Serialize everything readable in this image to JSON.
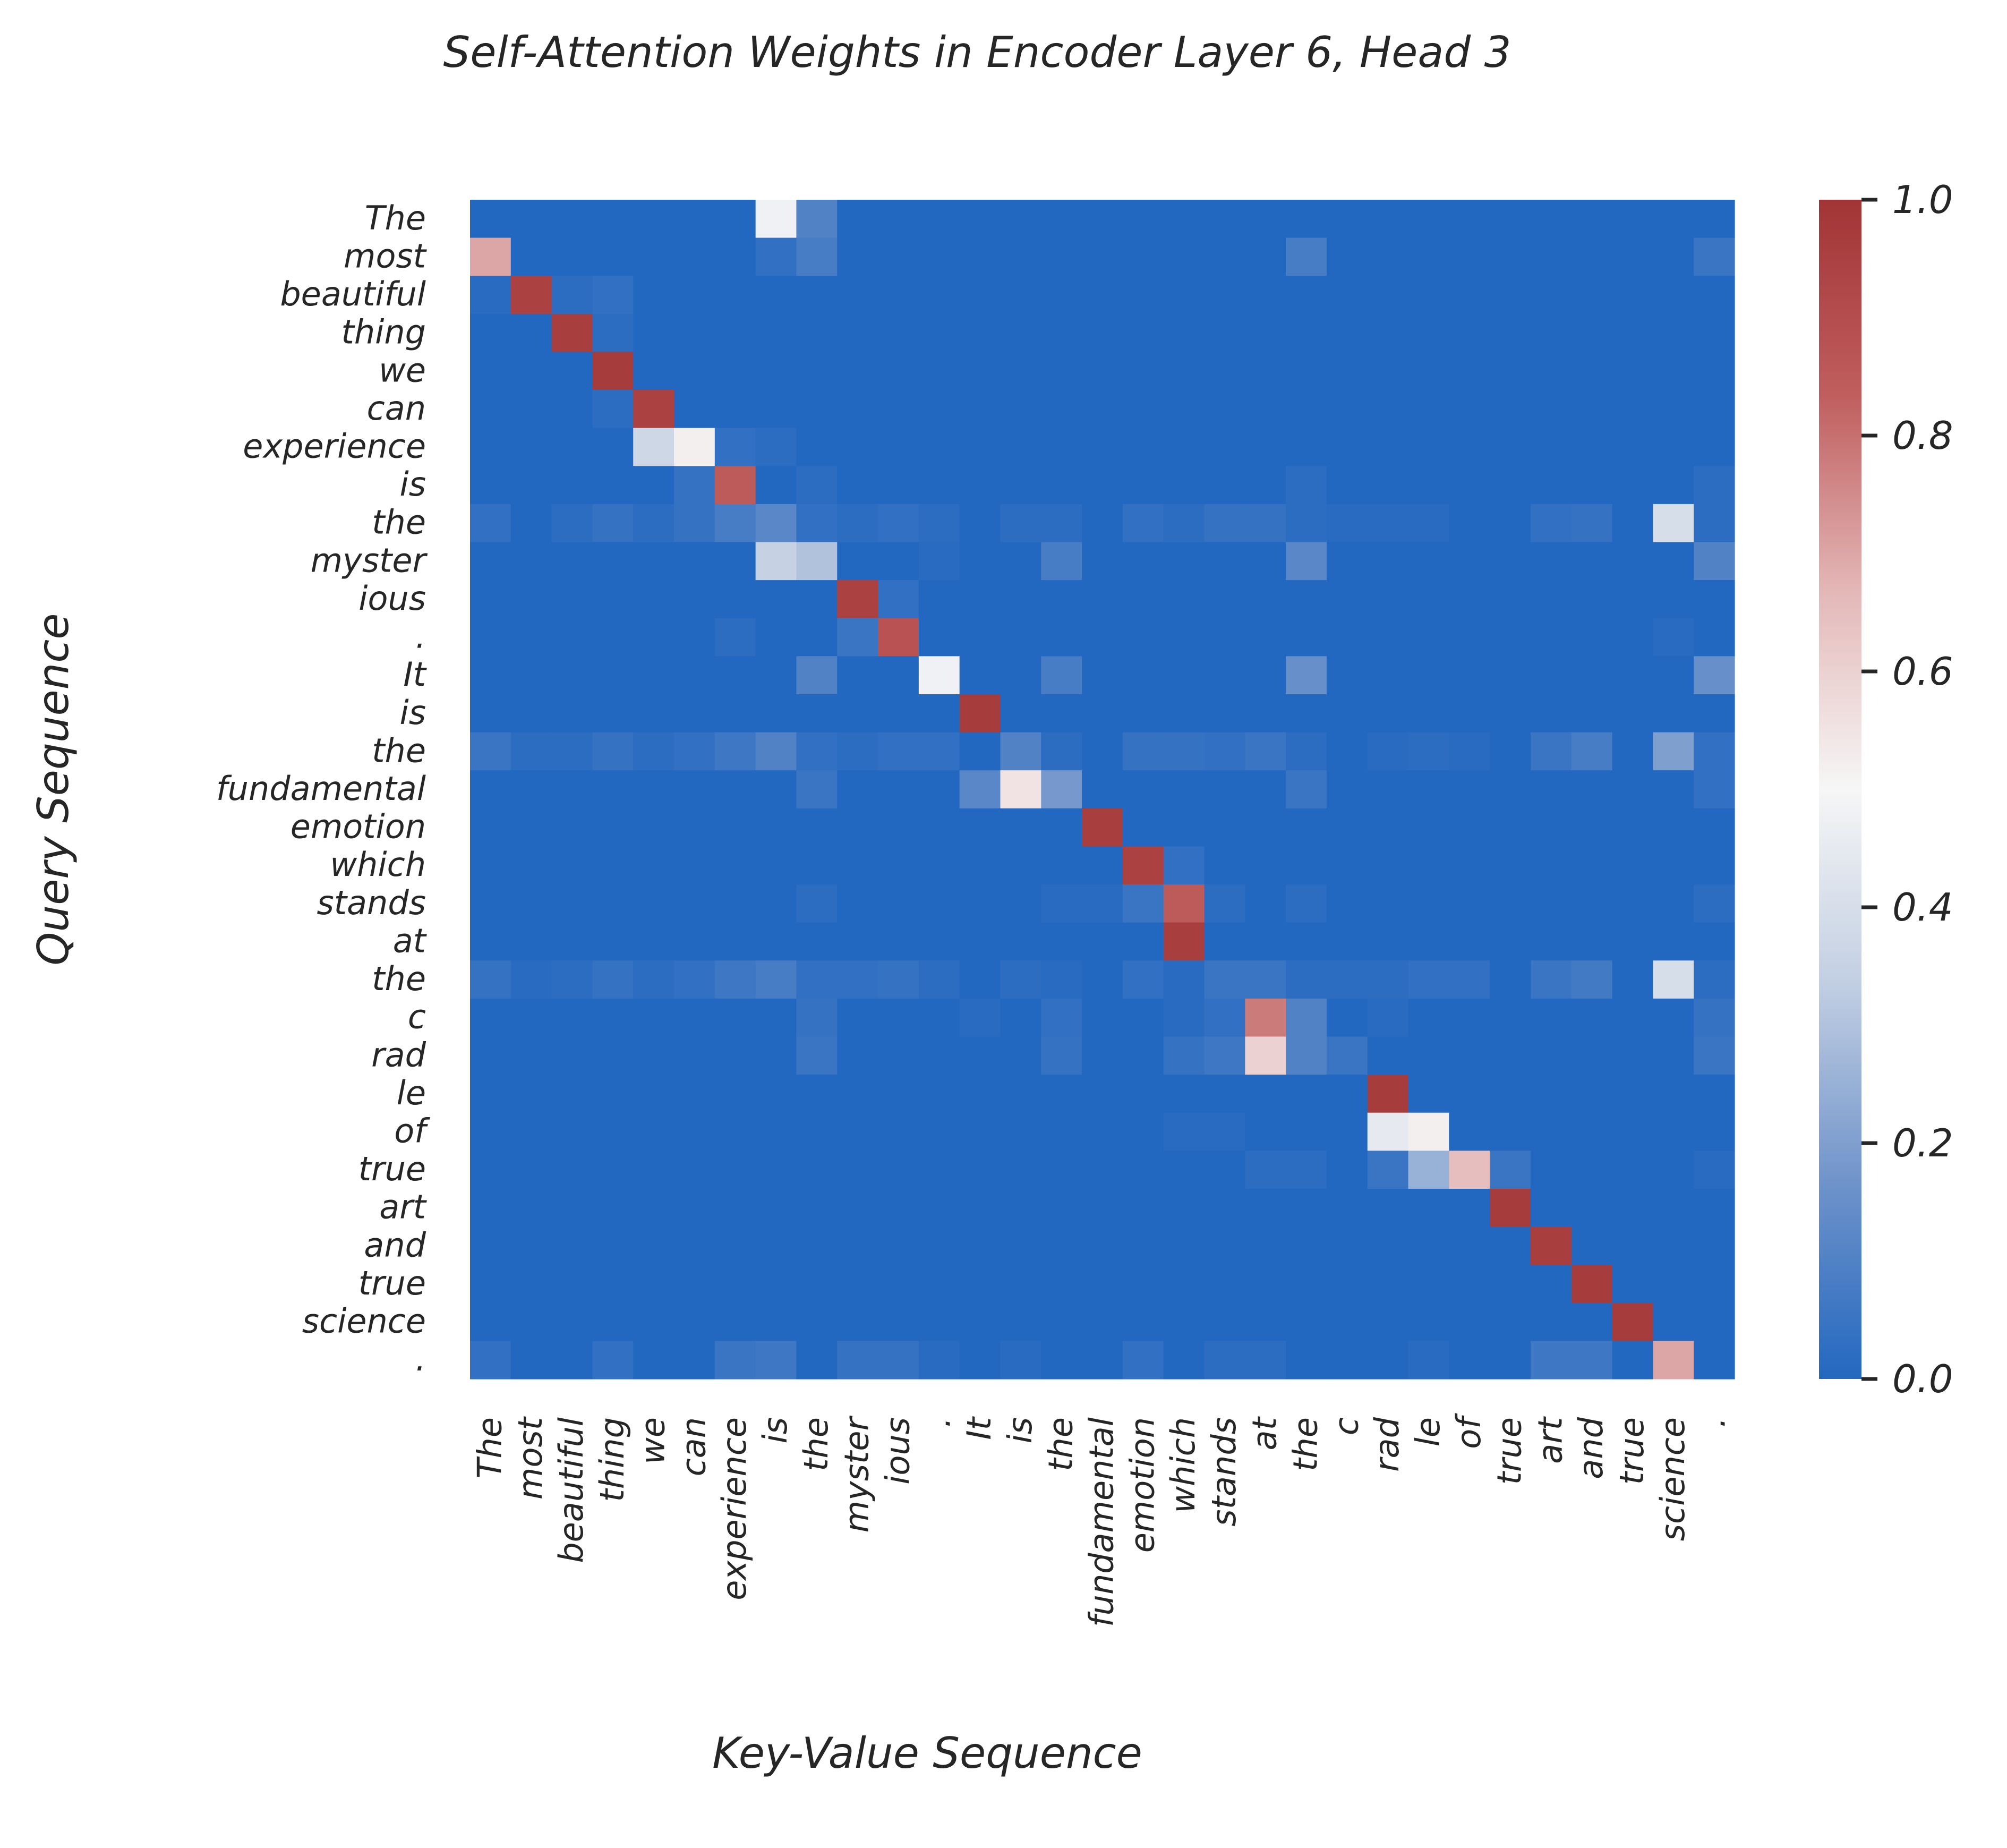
{
  "chart_data": {
    "type": "heatmap",
    "title": "Self-Attention Weights in Encoder Layer 6, Head 3",
    "xlabel": "Key-Value Sequence",
    "ylabel": "Query Sequence",
    "row_labels": [
      "The",
      "most",
      "beautiful",
      "thing",
      "we",
      "can",
      "experience",
      "is",
      "the",
      "myster",
      "ious",
      ".",
      "It",
      "is",
      "the",
      "fundamental",
      "emotion",
      "which",
      "stands",
      "at",
      "the",
      "c",
      "rad",
      "le",
      "of",
      "true",
      "art",
      "and",
      "true",
      "science",
      "."
    ],
    "col_labels": [
      "The",
      "most",
      "beautiful",
      "thing",
      "we",
      "can",
      "experience",
      "is",
      "the",
      "myster",
      "ious",
      ".",
      "It",
      "is",
      "the",
      "fundamental",
      "emotion",
      "which",
      "stands",
      "at",
      "the",
      "c",
      "rad",
      "le",
      "of",
      "true",
      "art",
      "and",
      "true",
      "science",
      "."
    ],
    "colorbar": {
      "min": 0.0,
      "max": 1.0,
      "ticks": [
        "0.0",
        "0.2",
        "0.4",
        "0.6",
        "0.8",
        "1.0"
      ],
      "colors": [
        "#2368c0",
        "#6f93ca",
        "#c1cee2",
        "#f6f6f6",
        "#e4b8b8",
        "#c05e5e",
        "#a23435"
      ]
    },
    "values": [
      [
        0.0,
        0.0,
        0.0,
        0.0,
        0.0,
        0.0,
        0.0,
        0.48,
        0.1,
        0.0,
        0.0,
        0.0,
        0.0,
        0.0,
        0.0,
        0.0,
        0.0,
        0.0,
        0.0,
        0.0,
        0.0,
        0.0,
        0.0,
        0.0,
        0.0,
        0.0,
        0.0,
        0.0,
        0.0,
        0.0,
        0.0
      ],
      [
        0.7,
        0.0,
        0.0,
        0.0,
        0.0,
        0.0,
        0.0,
        0.03,
        0.08,
        0.0,
        0.0,
        0.0,
        0.0,
        0.0,
        0.0,
        0.0,
        0.0,
        0.0,
        0.0,
        0.0,
        0.08,
        0.0,
        0.0,
        0.0,
        0.0,
        0.0,
        0.0,
        0.0,
        0.0,
        0.0,
        0.05
      ],
      [
        0.01,
        0.95,
        0.02,
        0.03,
        0.0,
        0.0,
        0.0,
        0.0,
        0.0,
        0.0,
        0.0,
        0.0,
        0.0,
        0.0,
        0.0,
        0.0,
        0.0,
        0.0,
        0.0,
        0.0,
        0.0,
        0.0,
        0.0,
        0.0,
        0.0,
        0.0,
        0.0,
        0.0,
        0.0,
        0.0,
        0.0
      ],
      [
        0.0,
        0.0,
        0.96,
        0.02,
        0.0,
        0.0,
        0.0,
        0.0,
        0.0,
        0.0,
        0.0,
        0.0,
        0.0,
        0.0,
        0.0,
        0.0,
        0.0,
        0.0,
        0.0,
        0.0,
        0.0,
        0.0,
        0.0,
        0.0,
        0.0,
        0.0,
        0.0,
        0.0,
        0.0,
        0.0,
        0.0
      ],
      [
        0.0,
        0.0,
        0.0,
        0.97,
        0.0,
        0.0,
        0.0,
        0.0,
        0.0,
        0.0,
        0.0,
        0.0,
        0.0,
        0.0,
        0.0,
        0.0,
        0.0,
        0.0,
        0.0,
        0.0,
        0.0,
        0.0,
        0.0,
        0.0,
        0.0,
        0.0,
        0.0,
        0.0,
        0.0,
        0.0,
        0.0
      ],
      [
        0.0,
        0.0,
        0.0,
        0.02,
        0.95,
        0.0,
        0.0,
        0.0,
        0.0,
        0.0,
        0.0,
        0.0,
        0.0,
        0.0,
        0.0,
        0.0,
        0.0,
        0.0,
        0.0,
        0.0,
        0.0,
        0.0,
        0.0,
        0.0,
        0.0,
        0.0,
        0.0,
        0.0,
        0.0,
        0.0,
        0.0
      ],
      [
        0.0,
        0.0,
        0.0,
        0.0,
        0.37,
        0.52,
        0.03,
        0.02,
        0.0,
        0.0,
        0.0,
        0.0,
        0.0,
        0.0,
        0.0,
        0.0,
        0.0,
        0.0,
        0.0,
        0.0,
        0.0,
        0.0,
        0.0,
        0.0,
        0.0,
        0.0,
        0.0,
        0.0,
        0.0,
        0.0,
        0.0
      ],
      [
        0.0,
        0.0,
        0.0,
        0.0,
        0.0,
        0.04,
        0.85,
        0.0,
        0.02,
        0.0,
        0.0,
        0.0,
        0.0,
        0.0,
        0.0,
        0.0,
        0.0,
        0.0,
        0.0,
        0.0,
        0.02,
        0.0,
        0.0,
        0.0,
        0.0,
        0.0,
        0.0,
        0.0,
        0.0,
        0.0,
        0.02
      ],
      [
        0.03,
        0.0,
        0.02,
        0.04,
        0.02,
        0.04,
        0.08,
        0.12,
        0.03,
        0.02,
        0.03,
        0.02,
        0.0,
        0.02,
        0.02,
        0.0,
        0.03,
        0.02,
        0.04,
        0.04,
        0.02,
        0.01,
        0.01,
        0.01,
        0.0,
        0.0,
        0.03,
        0.04,
        0.0,
        0.4,
        0.02
      ],
      [
        0.0,
        0.0,
        0.0,
        0.0,
        0.0,
        0.0,
        0.0,
        0.35,
        0.3,
        0.0,
        0.0,
        0.01,
        0.0,
        0.0,
        0.08,
        0.0,
        0.0,
        0.0,
        0.0,
        0.0,
        0.12,
        0.0,
        0.0,
        0.0,
        0.0,
        0.0,
        0.0,
        0.0,
        0.0,
        0.0,
        0.1
      ],
      [
        0.0,
        0.0,
        0.0,
        0.0,
        0.0,
        0.0,
        0.0,
        0.0,
        0.0,
        0.95,
        0.03,
        0.0,
        0.0,
        0.0,
        0.0,
        0.0,
        0.0,
        0.0,
        0.0,
        0.0,
        0.0,
        0.0,
        0.0,
        0.0,
        0.0,
        0.0,
        0.0,
        0.0,
        0.0,
        0.0,
        0.0
      ],
      [
        0.0,
        0.0,
        0.0,
        0.0,
        0.0,
        0.0,
        0.02,
        0.0,
        0.0,
        0.05,
        0.88,
        0.0,
        0.0,
        0.0,
        0.0,
        0.0,
        0.0,
        0.0,
        0.0,
        0.0,
        0.0,
        0.0,
        0.0,
        0.0,
        0.0,
        0.0,
        0.0,
        0.0,
        0.0,
        0.01,
        0.0
      ],
      [
        0.0,
        0.0,
        0.0,
        0.0,
        0.0,
        0.0,
        0.0,
        0.0,
        0.1,
        0.0,
        0.0,
        0.48,
        0.0,
        0.0,
        0.08,
        0.0,
        0.0,
        0.0,
        0.0,
        0.0,
        0.15,
        0.0,
        0.0,
        0.0,
        0.0,
        0.0,
        0.0,
        0.0,
        0.0,
        0.0,
        0.15
      ],
      [
        0.0,
        0.0,
        0.0,
        0.0,
        0.0,
        0.0,
        0.0,
        0.0,
        0.0,
        0.0,
        0.0,
        0.0,
        0.97,
        0.0,
        0.0,
        0.0,
        0.0,
        0.0,
        0.0,
        0.0,
        0.0,
        0.0,
        0.0,
        0.0,
        0.0,
        0.0,
        0.0,
        0.0,
        0.0,
        0.0,
        0.0
      ],
      [
        0.05,
        0.02,
        0.02,
        0.04,
        0.02,
        0.03,
        0.06,
        0.1,
        0.03,
        0.02,
        0.03,
        0.03,
        0.0,
        0.1,
        0.02,
        0.0,
        0.04,
        0.04,
        0.03,
        0.05,
        0.02,
        0.0,
        0.01,
        0.02,
        0.01,
        0.0,
        0.05,
        0.08,
        0.0,
        0.2,
        0.03
      ],
      [
        0.0,
        0.0,
        0.0,
        0.0,
        0.0,
        0.0,
        0.0,
        0.0,
        0.05,
        0.0,
        0.0,
        0.0,
        0.12,
        0.55,
        0.18,
        0.0,
        0.0,
        0.0,
        0.0,
        0.0,
        0.05,
        0.0,
        0.0,
        0.0,
        0.0,
        0.0,
        0.0,
        0.0,
        0.0,
        0.0,
        0.03
      ],
      [
        0.0,
        0.0,
        0.0,
        0.0,
        0.0,
        0.0,
        0.0,
        0.0,
        0.0,
        0.0,
        0.0,
        0.0,
        0.0,
        0.0,
        0.0,
        0.96,
        0.0,
        0.0,
        0.0,
        0.0,
        0.0,
        0.0,
        0.0,
        0.0,
        0.0,
        0.0,
        0.0,
        0.0,
        0.0,
        0.0,
        0.0
      ],
      [
        0.0,
        0.0,
        0.0,
        0.0,
        0.0,
        0.0,
        0.0,
        0.0,
        0.0,
        0.0,
        0.0,
        0.0,
        0.0,
        0.0,
        0.0,
        0.0,
        0.95,
        0.03,
        0.0,
        0.0,
        0.0,
        0.0,
        0.0,
        0.0,
        0.0,
        0.0,
        0.0,
        0.0,
        0.0,
        0.0,
        0.0
      ],
      [
        0.0,
        0.0,
        0.0,
        0.0,
        0.0,
        0.0,
        0.0,
        0.0,
        0.02,
        0.0,
        0.0,
        0.0,
        0.0,
        0.0,
        0.01,
        0.01,
        0.05,
        0.85,
        0.02,
        0.0,
        0.02,
        0.0,
        0.0,
        0.0,
        0.0,
        0.0,
        0.0,
        0.0,
        0.0,
        0.0,
        0.02
      ],
      [
        0.0,
        0.0,
        0.0,
        0.0,
        0.0,
        0.0,
        0.0,
        0.0,
        0.0,
        0.0,
        0.0,
        0.0,
        0.0,
        0.0,
        0.0,
        0.0,
        0.0,
        0.96,
        0.0,
        0.0,
        0.0,
        0.0,
        0.0,
        0.0,
        0.0,
        0.0,
        0.0,
        0.0,
        0.0,
        0.0,
        0.0
      ],
      [
        0.04,
        0.01,
        0.02,
        0.04,
        0.02,
        0.03,
        0.06,
        0.08,
        0.03,
        0.03,
        0.04,
        0.02,
        0.0,
        0.02,
        0.01,
        0.0,
        0.03,
        0.01,
        0.05,
        0.05,
        0.02,
        0.02,
        0.02,
        0.03,
        0.03,
        0.0,
        0.05,
        0.07,
        0.0,
        0.4,
        0.02
      ],
      [
        0.0,
        0.0,
        0.0,
        0.0,
        0.0,
        0.0,
        0.0,
        0.0,
        0.04,
        0.0,
        0.0,
        0.0,
        0.01,
        0.0,
        0.03,
        0.0,
        0.0,
        0.01,
        0.03,
        0.78,
        0.1,
        0.0,
        0.01,
        0.0,
        0.0,
        0.0,
        0.0,
        0.0,
        0.0,
        0.0,
        0.04
      ],
      [
        0.0,
        0.0,
        0.0,
        0.0,
        0.0,
        0.0,
        0.0,
        0.0,
        0.05,
        0.0,
        0.0,
        0.0,
        0.0,
        0.0,
        0.04,
        0.0,
        0.0,
        0.04,
        0.06,
        0.6,
        0.1,
        0.05,
        0.0,
        0.0,
        0.0,
        0.0,
        0.0,
        0.0,
        0.0,
        0.0,
        0.05
      ],
      [
        0.0,
        0.0,
        0.0,
        0.0,
        0.0,
        0.0,
        0.0,
        0.0,
        0.0,
        0.0,
        0.0,
        0.0,
        0.0,
        0.0,
        0.0,
        0.0,
        0.0,
        0.0,
        0.0,
        0.0,
        0.0,
        0.0,
        0.97,
        0.0,
        0.0,
        0.0,
        0.0,
        0.0,
        0.0,
        0.0,
        0.0
      ],
      [
        0.0,
        0.0,
        0.0,
        0.0,
        0.0,
        0.0,
        0.0,
        0.0,
        0.0,
        0.0,
        0.0,
        0.0,
        0.0,
        0.0,
        0.0,
        0.0,
        0.0,
        0.01,
        0.01,
        0.0,
        0.0,
        0.0,
        0.45,
        0.52,
        0.0,
        0.0,
        0.0,
        0.0,
        0.0,
        0.0,
        0.0
      ],
      [
        0.0,
        0.0,
        0.0,
        0.0,
        0.0,
        0.0,
        0.0,
        0.0,
        0.0,
        0.0,
        0.0,
        0.0,
        0.0,
        0.0,
        0.0,
        0.0,
        0.0,
        0.0,
        0.0,
        0.02,
        0.02,
        0.0,
        0.05,
        0.25,
        0.65,
        0.05,
        0.0,
        0.0,
        0.0,
        0.0,
        0.01
      ],
      [
        0.0,
        0.0,
        0.0,
        0.0,
        0.0,
        0.0,
        0.0,
        0.0,
        0.0,
        0.0,
        0.0,
        0.0,
        0.0,
        0.0,
        0.0,
        0.0,
        0.0,
        0.0,
        0.0,
        0.0,
        0.0,
        0.0,
        0.0,
        0.0,
        0.0,
        0.97,
        0.0,
        0.0,
        0.0,
        0.0,
        0.0
      ],
      [
        0.0,
        0.0,
        0.0,
        0.0,
        0.0,
        0.0,
        0.0,
        0.0,
        0.0,
        0.0,
        0.0,
        0.0,
        0.0,
        0.0,
        0.0,
        0.0,
        0.0,
        0.0,
        0.0,
        0.0,
        0.0,
        0.0,
        0.0,
        0.0,
        0.0,
        0.0,
        0.96,
        0.0,
        0.0,
        0.0,
        0.0
      ],
      [
        0.0,
        0.0,
        0.0,
        0.0,
        0.0,
        0.0,
        0.0,
        0.0,
        0.0,
        0.0,
        0.0,
        0.0,
        0.0,
        0.0,
        0.0,
        0.0,
        0.0,
        0.0,
        0.0,
        0.0,
        0.0,
        0.0,
        0.0,
        0.0,
        0.0,
        0.0,
        0.0,
        0.97,
        0.0,
        0.0,
        0.0
      ],
      [
        0.0,
        0.0,
        0.0,
        0.0,
        0.0,
        0.0,
        0.0,
        0.0,
        0.0,
        0.0,
        0.0,
        0.0,
        0.0,
        0.0,
        0.0,
        0.0,
        0.0,
        0.0,
        0.0,
        0.0,
        0.0,
        0.0,
        0.0,
        0.0,
        0.0,
        0.0,
        0.0,
        0.0,
        0.97,
        0.0,
        0.0
      ],
      [
        0.03,
        0.0,
        0.0,
        0.03,
        0.0,
        0.0,
        0.05,
        0.06,
        0.0,
        0.04,
        0.04,
        0.01,
        0.0,
        0.01,
        0.0,
        0.0,
        0.03,
        0.0,
        0.02,
        0.02,
        0.0,
        0.0,
        0.0,
        0.01,
        0.0,
        0.0,
        0.06,
        0.06,
        0.0,
        0.7,
        0.0
      ]
    ]
  }
}
